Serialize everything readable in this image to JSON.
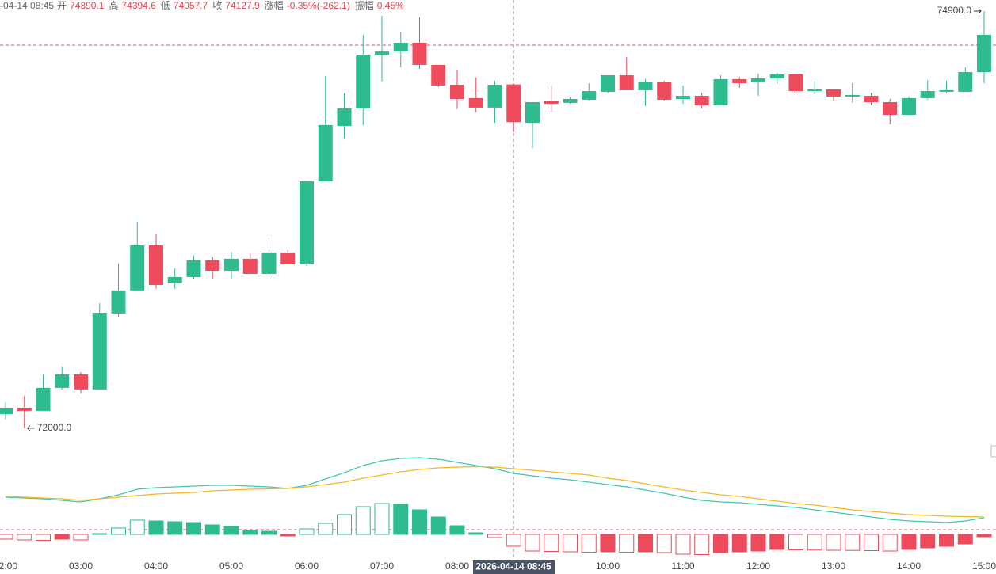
{
  "header": {
    "time": "-04-14 08:45",
    "items": [
      {
        "label": "开",
        "value": 74390.1
      },
      {
        "label": "高",
        "value": 74394.6
      },
      {
        "label": "低",
        "value": 74057.7
      },
      {
        "label": "收",
        "value": 74127.9
      },
      {
        "label": "涨幅",
        "value": "-0.35%(-262.1)"
      },
      {
        "label": "振幅",
        "value": "0.45%"
      }
    ]
  },
  "chart_data": [
    {
      "type": "candlestick",
      "categories": [
        "02:00",
        null,
        null,
        null,
        "03:00",
        null,
        null,
        null,
        "04:00",
        null,
        null,
        null,
        "05:00",
        null,
        null,
        null,
        "06:00",
        null,
        null,
        null,
        "07:00",
        null,
        null,
        null,
        "08:00",
        null,
        null,
        null,
        null,
        null,
        null,
        null,
        "10:00",
        null,
        null,
        null,
        "11:00",
        null,
        null,
        null,
        "12:00",
        null,
        null,
        null,
        "13:00",
        null,
        null,
        null,
        "14:00",
        null,
        null,
        null,
        "15:00"
      ],
      "open": [
        72099,
        72143,
        72121,
        72281,
        72374,
        72270,
        72798,
        72958,
        73271,
        73007,
        73051,
        73167,
        73095,
        73178,
        73073,
        73222,
        73139,
        73717,
        74102,
        74223,
        74597,
        74619,
        74680,
        74526,
        74388,
        74295,
        74229,
        74390.1,
        74124,
        74273,
        74262,
        74284,
        74339,
        74454,
        74350,
        74405,
        74289,
        74311,
        74245,
        74427,
        74405,
        74432,
        74460,
        74344,
        74355,
        74306,
        74311,
        74267,
        74179,
        74295,
        74339,
        74339,
        74476
      ],
      "high": [
        72182,
        72226,
        72374,
        72429,
        72391,
        72869,
        73145,
        73436,
        73348,
        73112,
        73200,
        73189,
        73227,
        73216,
        73326,
        73238,
        73717,
        74449,
        74328,
        74735,
        74867,
        74757,
        74856,
        74526,
        74493,
        74438,
        74416,
        74394.6,
        74267,
        74383,
        74300,
        74399,
        74454,
        74581,
        74427,
        74416,
        74383,
        74333,
        74454,
        74443,
        74465,
        74471,
        74460,
        74410,
        74355,
        74399,
        74333,
        74289,
        74306,
        74421,
        74416,
        74509,
        74900
      ],
      "low": [
        72061,
        72000,
        72121,
        72270,
        72242,
        72270,
        72776,
        72958,
        72969,
        72969,
        73040,
        73040,
        73040,
        73073,
        73062,
        73139,
        73128,
        73717,
        74014,
        74108,
        74410,
        74509,
        74498,
        74372,
        74218,
        74196,
        74124,
        74057.7,
        73948,
        74196,
        74256,
        74278,
        74328,
        74350,
        74240,
        74273,
        74256,
        74223,
        74245,
        74366,
        74311,
        74394,
        74333,
        74322,
        74273,
        74262,
        74245,
        74113,
        74179,
        74284,
        74328,
        74339,
        74399
      ],
      "close": [
        72143,
        72121,
        72281,
        72374,
        72270,
        72803,
        72958,
        73271,
        72996,
        73051,
        73167,
        73095,
        73178,
        73073,
        73222,
        73139,
        73717,
        74108,
        74223,
        74597,
        74619,
        74680,
        74526,
        74383,
        74289,
        74229,
        74388,
        74127.9,
        74267,
        74256,
        74289,
        74344,
        74454,
        74350,
        74405,
        74284,
        74311,
        74245,
        74427,
        74399,
        74432,
        74460,
        74344,
        74355,
        74306,
        74317,
        74267,
        74179,
        74295,
        74344,
        74350,
        74476,
        74735
      ],
      "up_color": "#2dbb8f",
      "down_color": "#ee4b5c",
      "ylim": [
        71895,
        74977
      ],
      "max_label": {
        "value": 74900,
        "label": "74900.0"
      },
      "min_label": {
        "value": 72000,
        "label": "72000.0"
      },
      "crosshair": "2026-04-14 08:45"
    },
    {
      "type": "macd",
      "series": [
        {
          "color": "#3cc9b0",
          "values": [
            47,
            46,
            45,
            43,
            41,
            45,
            50,
            57,
            59,
            60,
            61,
            62,
            62,
            61,
            60,
            58,
            62,
            70,
            78,
            87,
            93,
            96,
            97,
            95,
            91,
            87,
            83,
            77,
            74,
            71,
            69,
            66,
            63,
            60,
            56,
            52,
            47,
            43,
            41,
            40,
            38,
            36,
            34,
            31,
            28,
            25,
            22,
            19,
            17,
            16,
            15,
            17,
            21
          ]
        },
        {
          "color": "#f2b81f",
          "values": [
            48,
            47,
            46,
            45,
            43,
            45,
            47,
            49,
            51,
            52,
            53,
            55,
            56,
            57,
            57.5,
            58,
            60,
            63,
            66,
            71,
            75,
            79,
            82,
            84,
            85,
            85.5,
            85,
            83,
            81,
            79,
            77,
            75,
            71,
            68,
            64,
            60,
            56,
            53,
            50,
            48,
            45,
            42,
            39,
            37,
            34,
            31,
            29,
            27,
            25,
            24,
            23,
            22.5,
            22
          ]
        }
      ],
      "values": [
        -6,
        -7,
        -7.5,
        -6,
        -7,
        1,
        8,
        18,
        17,
        16,
        15,
        12,
        10,
        5,
        4,
        -2,
        7,
        14,
        25,
        35,
        39,
        38,
        31,
        22,
        11,
        2,
        -4,
        -15,
        -21,
        -21.5,
        -22,
        -22.5,
        -22,
        -22.5,
        -22,
        -23,
        -25,
        -25.5,
        -23,
        -22,
        -21,
        -19,
        -19.5,
        -19.8,
        -20,
        -20.2,
        -20.5,
        -21,
        -19,
        -17,
        -15,
        -12,
        -3
      ],
      "up_color": "#2dbb8f",
      "down_color": "#ee4b5c",
      "ylim": [
        -30,
        105
      ]
    }
  ]
}
